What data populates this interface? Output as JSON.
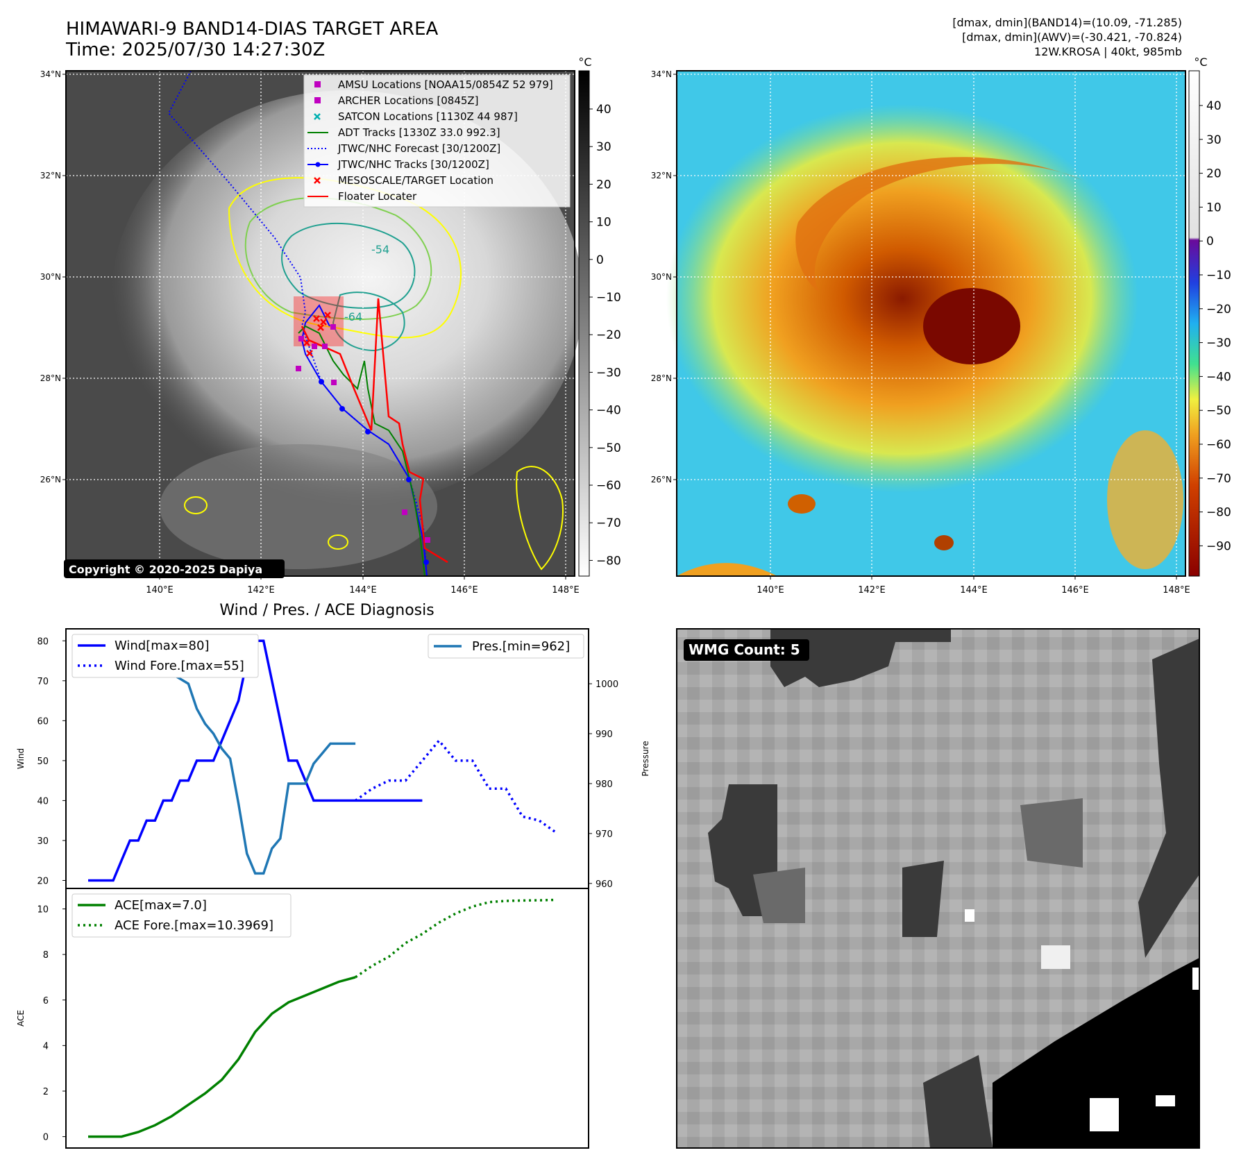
{
  "header": {
    "title": "HIMAWARI-9 BAND14-DIAS TARGET AREA",
    "time": "Time: 2025/07/30 14:27:30Z",
    "info_line1": "[dmax, dmin](BAND14)=(10.09, -71.285)",
    "info_line2": "[dmax, dmin](AWV)=(-30.421, -70.824)",
    "info_line3": "12W.KROSA | 40kt, 985mb"
  },
  "colors": {
    "wind": "#0000ff",
    "pressure": "#1f77b4",
    "ace": "#008000",
    "track_red": "#ff0000",
    "contour_yellow": "#ffff00",
    "contour_green": "#7fd04f",
    "contour_teal": "#20a090"
  },
  "maps": {
    "lat_ticks": [
      "34°N",
      "32°N",
      "30°N",
      "28°N",
      "26°N"
    ],
    "lon_ticks": [
      "140°E",
      "142°E",
      "144°E",
      "146°E",
      "148°E"
    ],
    "copyright": "Copyright © 2020-2025 Dapiya",
    "contour_labels": [
      "-54",
      "-64"
    ],
    "ir_colorbar": {
      "unit": "°C",
      "ticks": [
        "40",
        "30",
        "20",
        "10",
        "0",
        "−10",
        "−20",
        "−30",
        "−40",
        "−50",
        "−60",
        "−70",
        "−80"
      ]
    },
    "color_colorbar": {
      "unit": "°C",
      "ticks": [
        "40",
        "30",
        "20",
        "10",
        "0",
        "−10",
        "−20",
        "−30",
        "−40",
        "−50",
        "−60",
        "−70",
        "−80",
        "−90"
      ]
    },
    "legend": [
      {
        "label": "AMSU Locations [NOAA15/0854Z 52 979]",
        "marker": "square-icon",
        "color": "#c000c0"
      },
      {
        "label": "ARCHER Locations [0845Z]",
        "marker": "square-icon",
        "color": "#c000c0"
      },
      {
        "label": "SATCON Locations [1130Z 44 987]",
        "marker": "x-icon",
        "color": "#00b0b0"
      },
      {
        "label": "ADT Tracks [1330Z 33.0 992.3]",
        "marker": "line-icon",
        "color": "#008000"
      },
      {
        "label": "JTWC/NHC Forecast [30/1200Z]",
        "marker": "dotted-line-icon",
        "color": "#0000ff"
      },
      {
        "label": "JTWC/NHC Tracks [30/1200Z]",
        "marker": "dot-line-icon",
        "color": "#0000ff"
      },
      {
        "label": "MESOSCALE/TARGET Location",
        "marker": "x-icon",
        "color": "#ff0000"
      },
      {
        "label": "Floater Locater",
        "marker": "line-icon",
        "color": "#ff0000"
      }
    ]
  },
  "wmg": {
    "label": "WMG Count: 5"
  },
  "chart_data": [
    {
      "type": "line",
      "title": "Wind / Pres. / ACE Diagnosis",
      "ylabel": "Wind",
      "ylabel_right": "Pressure",
      "ylim": [
        18,
        83
      ],
      "ylim_right": [
        959,
        1011
      ],
      "yticks": [
        20,
        30,
        40,
        50,
        60,
        70,
        80
      ],
      "yticks_right": [
        960,
        970,
        980,
        990,
        1000
      ],
      "legend_left": [
        "Wind[max=80]",
        "Wind Fore.[max=55]"
      ],
      "legend_right": [
        "Pres.[min=962]"
      ],
      "x_count": 58,
      "series": [
        {
          "name": "Wind[max=80]",
          "style": "solid",
          "color": "#0000ff",
          "x": [
            0,
            1,
            2,
            3,
            4,
            5,
            6,
            7,
            8,
            9,
            10,
            11,
            12,
            13,
            14,
            15,
            16,
            17,
            18,
            19,
            20,
            21,
            22,
            23,
            24,
            25,
            26,
            27,
            28,
            29,
            30,
            31,
            32,
            33,
            34,
            35,
            36,
            37,
            38,
            39,
            40
          ],
          "values": [
            20,
            20,
            20,
            20,
            25,
            30,
            30,
            35,
            35,
            40,
            40,
            45,
            45,
            50,
            50,
            50,
            55,
            60,
            65,
            75,
            80,
            80,
            70,
            60,
            50,
            50,
            45,
            40,
            40,
            40,
            40,
            40,
            40,
            40,
            40,
            40,
            40,
            40,
            40,
            40,
            40
          ]
        },
        {
          "name": "Wind Fore.[max=55]",
          "style": "dotted",
          "color": "#0000ff",
          "x": [
            32,
            34,
            36,
            38,
            40,
            42,
            44,
            46,
            48,
            50,
            52,
            54,
            56
          ],
          "values": [
            40,
            43,
            45,
            45,
            50,
            55,
            50,
            50,
            43,
            43,
            36,
            35,
            32
          ]
        },
        {
          "name": "Pres.[min=962]",
          "style": "solid",
          "color": "#1f77b4",
          "x": [
            0,
            1,
            2,
            3,
            4,
            5,
            6,
            7,
            8,
            9,
            10,
            11,
            12,
            13,
            14,
            15,
            16,
            17,
            18,
            19,
            20,
            21,
            22,
            23,
            24,
            25,
            26,
            27,
            28,
            29,
            30,
            31,
            32
          ],
          "values": [
            1008,
            1008,
            1008,
            1008,
            1006,
            1006,
            1005,
            1004,
            1003,
            1002,
            1002,
            1001,
            1000,
            995,
            992,
            990,
            987,
            985,
            976,
            966,
            962,
            962,
            967,
            969,
            980,
            980,
            980,
            984,
            986,
            988,
            988,
            988,
            988
          ]
        }
      ]
    },
    {
      "type": "line",
      "ylabel": "ACE",
      "ylim": [
        -0.5,
        10.9
      ],
      "yticks": [
        0,
        2,
        4,
        6,
        8,
        10
      ],
      "x_count": 58,
      "series": [
        {
          "name": "ACE[max=7.0]",
          "style": "solid",
          "color": "#008000",
          "x": [
            0,
            2,
            4,
            6,
            8,
            10,
            12,
            14,
            16,
            18,
            20,
            22,
            24,
            26,
            28,
            30,
            32
          ],
          "values": [
            0,
            0,
            0,
            0.2,
            0.5,
            0.9,
            1.4,
            1.9,
            2.5,
            3.4,
            4.6,
            5.4,
            5.9,
            6.2,
            6.5,
            6.8,
            7.0
          ]
        },
        {
          "name": "ACE Fore.[max=10.3969]",
          "style": "dotted",
          "color": "#008000",
          "x": [
            32,
            34,
            36,
            38,
            40,
            42,
            44,
            46,
            48,
            50,
            52,
            54,
            56
          ],
          "values": [
            7.0,
            7.5,
            7.9,
            8.5,
            8.9,
            9.4,
            9.8,
            10.1,
            10.3,
            10.35,
            10.37,
            10.38,
            10.3969
          ]
        }
      ]
    }
  ]
}
